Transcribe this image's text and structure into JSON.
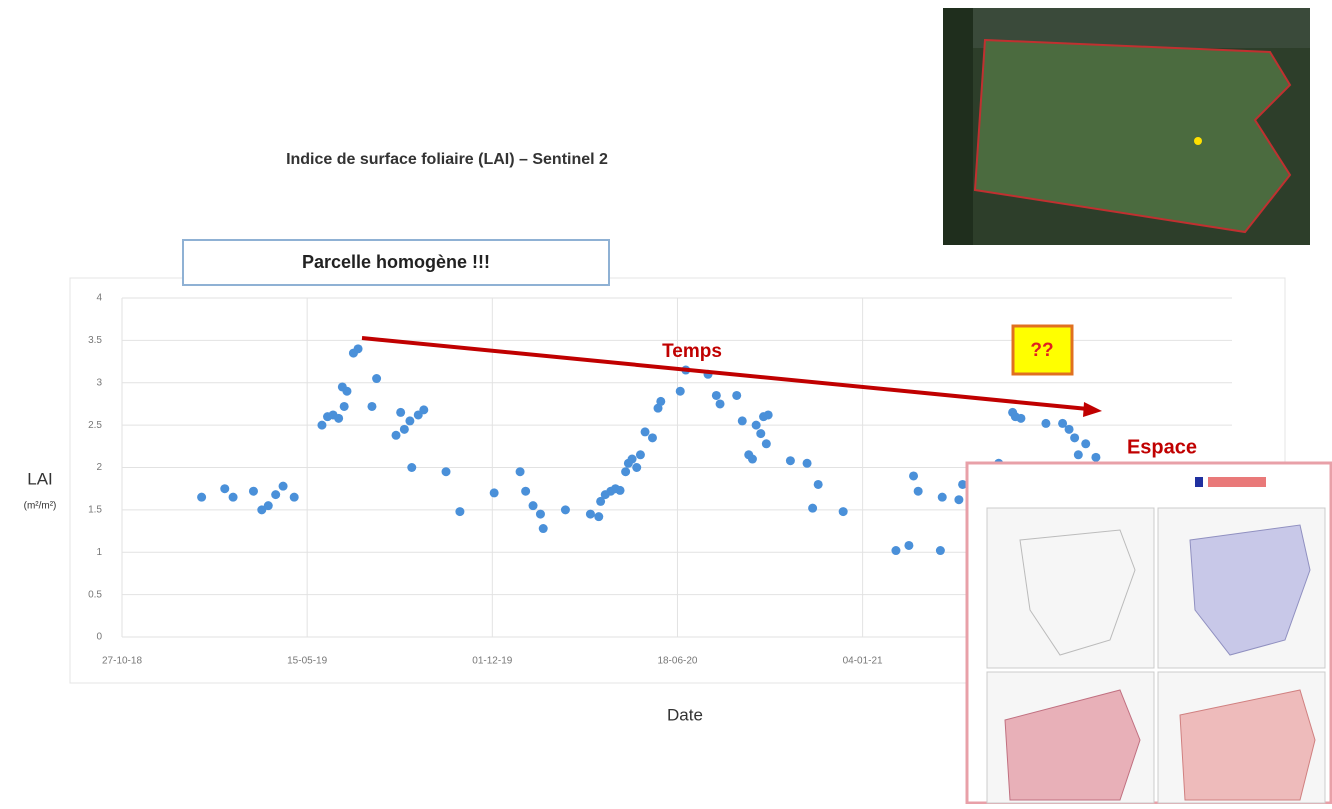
{
  "chart_data": {
    "type": "scatter",
    "title": "Indice de surface foliaire (LAI) – Sentinel 2",
    "note": "Parcelle homogène !!!",
    "y_label": "LAI",
    "y_unit": "(m²/m²)",
    "x_label": "Date",
    "annotations": [
      "Temps",
      "??",
      "Espace"
    ],
    "color": "#4a90d9",
    "grid": true,
    "x": [
      "2019-01-21",
      "2019-02-15",
      "2019-02-24",
      "2019-03-18",
      "2019-03-27",
      "2019-04-03",
      "2019-04-11",
      "2019-04-19",
      "2019-05-01",
      "2019-05-31",
      "2019-06-06",
      "2019-06-12",
      "2019-06-18",
      "2019-06-22",
      "2019-06-27",
      "2019-06-24",
      "2019-07-04",
      "2019-07-09",
      "2019-07-24",
      "2019-07-29",
      "2019-08-19",
      "2019-08-24",
      "2019-08-28",
      "2019-09-03",
      "2019-09-05",
      "2019-09-12",
      "2019-09-18",
      "2019-10-12",
      "2019-10-27",
      "2019-12-03",
      "2019-12-31",
      "2020-01-06",
      "2020-01-14",
      "2020-01-22",
      "2020-01-25",
      "2020-02-18",
      "2020-03-16",
      "2020-03-25",
      "2020-03-27",
      "2020-04-01",
      "2020-04-07",
      "2020-04-12",
      "2020-04-17",
      "2020-04-23",
      "2020-04-26",
      "2020-04-30",
      "2020-05-05",
      "2020-05-09",
      "2020-05-14",
      "2020-05-22",
      "2020-05-28",
      "2020-05-31",
      "2020-06-21",
      "2020-06-27",
      "2020-07-21",
      "2020-07-30",
      "2020-08-03",
      "2020-08-21",
      "2020-08-27",
      "2020-09-03",
      "2020-09-07",
      "2020-09-11",
      "2020-09-16",
      "2020-09-19",
      "2020-09-22",
      "2020-09-24",
      "2020-10-18",
      "2020-11-05",
      "2020-11-11",
      "2020-11-17",
      "2020-12-14",
      "2021-02-09",
      "2021-02-23",
      "2021-02-28",
      "2021-03-05",
      "2021-03-29",
      "2021-03-31",
      "2021-04-18",
      "2021-04-22",
      "2021-05-31",
      "2021-06-15",
      "2021-06-18",
      "2021-06-24",
      "2021-07-21",
      "2021-08-08",
      "2021-08-15",
      "2021-08-21",
      "2021-08-25",
      "2021-09-02",
      "2021-09-13"
    ],
    "values": [
      1.65,
      1.75,
      1.65,
      1.72,
      1.5,
      1.55,
      1.68,
      1.78,
      1.65,
      2.5,
      2.6,
      2.62,
      2.58,
      2.95,
      2.9,
      2.72,
      3.35,
      3.4,
      2.72,
      3.05,
      2.38,
      2.65,
      2.45,
      2.55,
      2.0,
      2.62,
      2.68,
      1.95,
      1.48,
      1.7,
      1.95,
      1.72,
      1.55,
      1.45,
      1.28,
      1.5,
      1.45,
      1.42,
      1.6,
      1.68,
      1.72,
      1.75,
      1.73,
      1.95,
      2.05,
      2.1,
      2.0,
      2.15,
      2.42,
      2.35,
      2.7,
      2.78,
      2.9,
      3.15,
      3.1,
      2.85,
      2.75,
      2.85,
      2.55,
      2.15,
      2.1,
      2.5,
      2.4,
      2.6,
      2.28,
      2.62,
      2.08,
      2.05,
      1.52,
      1.8,
      1.48,
      1.02,
      1.08,
      1.9,
      1.72,
      1.02,
      1.65,
      1.62,
      1.8,
      2.05,
      2.65,
      2.6,
      2.58,
      2.52,
      2.52,
      2.45,
      2.35,
      2.15,
      2.28,
      2.12
    ],
    "xlim": [
      "2018-10-27",
      "2022-02-07"
    ],
    "xticks": [
      {
        "value": "2018-10-27",
        "label": "27-10-18"
      },
      {
        "value": "2019-05-15",
        "label": "15-05-19"
      },
      {
        "value": "2019-12-01",
        "label": "01-12-19"
      },
      {
        "value": "2020-06-18",
        "label": "18-06-20"
      },
      {
        "value": "2021-01-04",
        "label": "04-01-21"
      }
    ],
    "ylim": [
      0,
      4
    ],
    "yticks": [
      0,
      0.5,
      1,
      1.5,
      2,
      2.5,
      3,
      3.5,
      4
    ]
  }
}
